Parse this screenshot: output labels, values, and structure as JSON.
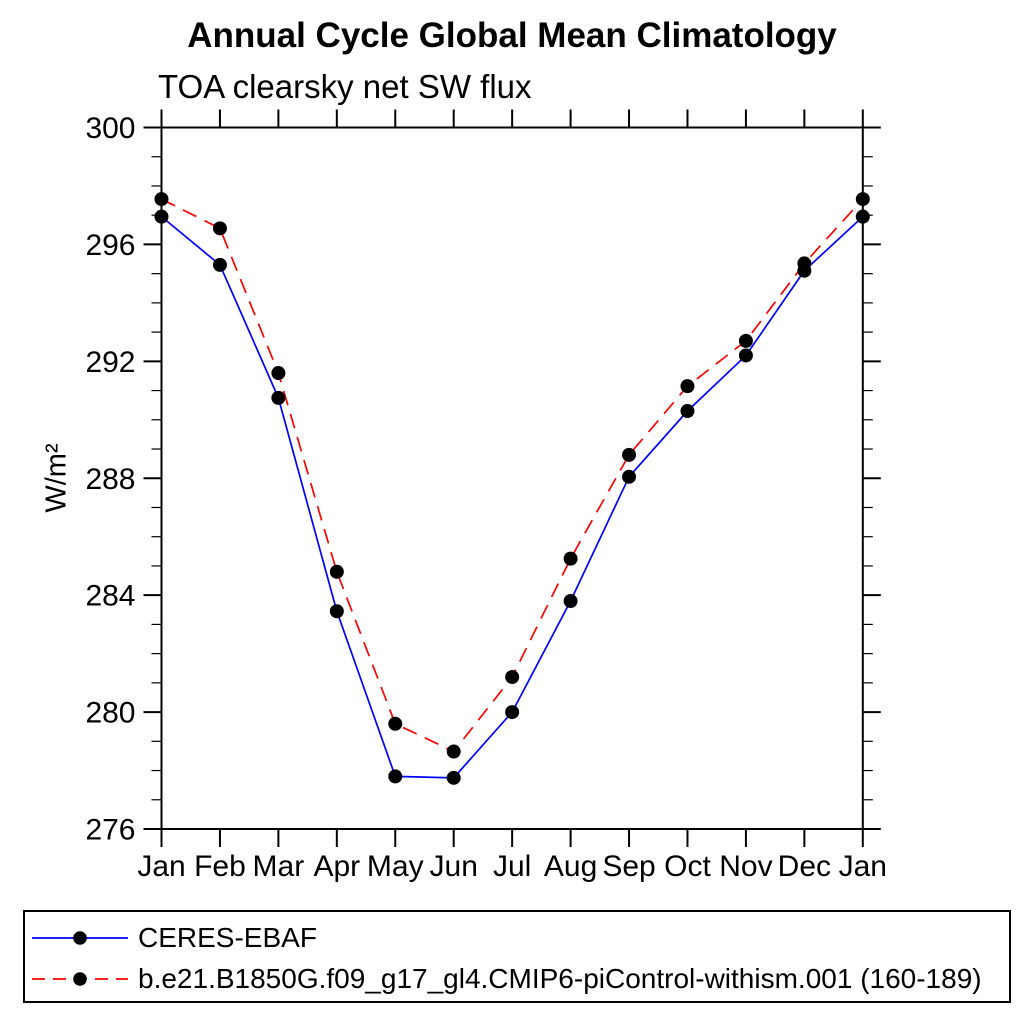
{
  "chart_data": {
    "type": "line",
    "title": "Annual Cycle Global Mean Climatology",
    "subtitle": "TOA clearsky net SW flux",
    "ylabel": "W/m²",
    "xlabel": "",
    "categories": [
      "Jan",
      "Feb",
      "Mar",
      "Apr",
      "May",
      "Jun",
      "Jul",
      "Aug",
      "Sep",
      "Oct",
      "Nov",
      "Dec",
      "Jan"
    ],
    "series": [
      {
        "name": "CERES-EBAF",
        "color": "#0000ff",
        "line_style": "solid",
        "marker": "filled-circle",
        "marker_color": "#000000",
        "values": [
          296.95,
          295.3,
          290.75,
          283.45,
          277.8,
          277.75,
          280.0,
          283.8,
          288.05,
          290.3,
          292.2,
          295.1,
          296.95
        ]
      },
      {
        "name": "b.e21.B1850G.f09_g17_gl4.CMIP6-piControl-withism.001 (160-189)",
        "color": "#ff0000",
        "line_style": "dashed",
        "marker": "filled-circle",
        "marker_color": "#000000",
        "values": [
          297.55,
          296.55,
          291.6,
          284.8,
          279.6,
          278.65,
          281.2,
          285.25,
          288.8,
          291.15,
          292.7,
          295.35,
          297.55
        ]
      }
    ],
    "ylim": [
      276,
      300
    ],
    "yticks_major": [
      276,
      280,
      284,
      288,
      292,
      296,
      300
    ],
    "ytick_minor_step": 1,
    "grid": false,
    "legend_position": "bottom-left-box",
    "axis_color": "#000000"
  }
}
